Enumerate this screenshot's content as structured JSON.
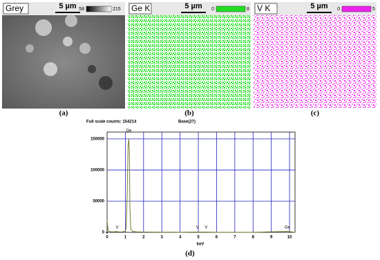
{
  "panels": [
    {
      "label": "Grey",
      "scale": "5 µm",
      "range": [
        58,
        215
      ],
      "caption": "(a)",
      "color": "#808080"
    },
    {
      "label": "Ge K",
      "scale": "5 µm",
      "range": [
        0,
        8
      ],
      "caption": "(b)",
      "color": "#22dd22"
    },
    {
      "label": "V K",
      "scale": "5 µm",
      "range": [
        0,
        5
      ],
      "caption": "(c)",
      "color": "#ee22ee"
    }
  ],
  "chart_data": {
    "type": "line",
    "title": "Full scale counts: 154214",
    "subtitle": "Base(27)",
    "x_label": "keV",
    "caption": "(d)",
    "x": [
      0,
      0.05,
      0.1,
      0.2,
      0.4,
      0.5,
      0.6,
      0.8,
      1.0,
      1.05,
      1.1,
      1.15,
      1.19,
      1.22,
      1.25,
      1.3,
      1.4,
      1.6,
      2,
      3,
      4,
      4.95,
      5.43,
      6,
      8,
      9.88,
      10.3
    ],
    "series": [
      {
        "name": "Base(27)",
        "color": "#7a7a30",
        "values": [
          20000,
          3000,
          1500,
          1000,
          800,
          1500,
          800,
          600,
          2000,
          8000,
          60000,
          140000,
          150000,
          130000,
          40000,
          5000,
          1500,
          800,
          500,
          300,
          200,
          600,
          400,
          200,
          100,
          1500,
          100
        ]
      }
    ],
    "peak_labels": [
      {
        "text": "V",
        "x": 0.55
      },
      {
        "text": "Ge",
        "x": 1.19
      },
      {
        "text": "V",
        "x": 4.95
      },
      {
        "text": "V",
        "x": 5.43
      },
      {
        "text": "Ge",
        "x": 9.88
      }
    ],
    "xlim": [
      0,
      10.3
    ],
    "ylim": [
      0,
      161000
    ],
    "xticks": [
      0,
      1,
      2,
      3,
      4,
      5,
      6,
      7,
      8,
      9,
      10
    ],
    "yticks": [
      0,
      50000,
      100000,
      150000
    ],
    "grid": true,
    "grid_color": "#2020c0"
  }
}
